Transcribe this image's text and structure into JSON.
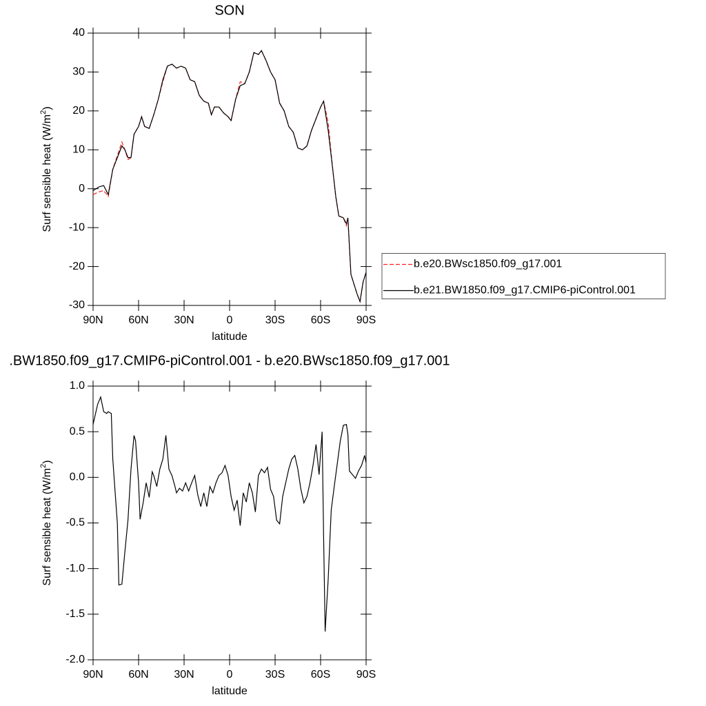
{
  "chart_data": [
    {
      "type": "line",
      "title": "SON",
      "x_label": "latitude",
      "y_label": [
        "Surf sensible heat (W/m",
        "2",
        ")"
      ],
      "xlim": [
        90,
        -90
      ],
      "xticks": [
        {
          "value": 90,
          "label": "90N"
        },
        {
          "value": 60,
          "label": "60N"
        },
        {
          "value": 30,
          "label": "30N"
        },
        0,
        {
          "value": -30,
          "label": "30S"
        },
        {
          "value": -60,
          "label": "60S"
        },
        {
          "value": -90,
          "label": "90S"
        }
      ],
      "ylim": [
        -30,
        40
      ],
      "yticks": [
        -30,
        -20,
        -10,
        0,
        10,
        20,
        30,
        40
      ],
      "legend": "right",
      "x": [
        90,
        86,
        83,
        80,
        77,
        74,
        71,
        69,
        67,
        65,
        63,
        60,
        58,
        56,
        53,
        50,
        47,
        44,
        41,
        38,
        35,
        32,
        29,
        26,
        23,
        20,
        17,
        14,
        12,
        10,
        7,
        4,
        1,
        -1,
        -4,
        -7,
        -10,
        -13,
        -16,
        -19,
        -21,
        -24,
        -27,
        -30,
        -33,
        -36,
        -39,
        -42,
        -45,
        -48,
        -51,
        -54,
        -57,
        -60,
        -62,
        -65,
        -68,
        -70,
        -72,
        -75,
        -77,
        -78,
        -80,
        -84,
        -86,
        -88,
        -90
      ],
      "series": [
        {
          "name": "b.e20.BWsc1850.f09_g17.001",
          "color": "#ff2020",
          "dash": true,
          "values": [
            -1.5,
            -0.8,
            -0.5,
            -2,
            5,
            8.5,
            12,
            10,
            7.5,
            8,
            14,
            16,
            18.5,
            16,
            15.5,
            19,
            23,
            27.5,
            31.5,
            32,
            31,
            31.5,
            31,
            28,
            27.5,
            24,
            22.5,
            22,
            19,
            21,
            21,
            19.5,
            18.5,
            17.5,
            23,
            27.5,
            27,
            30,
            35,
            34.5,
            35.5,
            33,
            30,
            28,
            22,
            20,
            16,
            14.5,
            10.5,
            10,
            11,
            15,
            18,
            21,
            22.5,
            17,
            5,
            -2,
            -7,
            -7.5,
            -9.5,
            -7.5,
            -22,
            -27,
            -29,
            -24,
            -21.5
          ]
        },
        {
          "name": "b.e21.BW1850.f09_g17.CMIP6-piControl.001",
          "color": "#000000",
          "dash": false,
          "values": [
            -0.5,
            0.5,
            0.8,
            -1.5,
            5,
            8,
            11,
            10,
            8,
            8,
            14,
            16,
            18.5,
            16,
            15.5,
            19,
            23,
            28,
            31.5,
            32,
            31,
            31.5,
            31,
            28,
            27.5,
            24,
            22.5,
            22,
            19,
            21,
            21,
            19.5,
            18.5,
            17.5,
            23,
            26.5,
            27,
            30,
            35,
            34.5,
            35.5,
            33,
            30,
            28,
            22,
            20,
            16,
            14.5,
            10.5,
            10,
            11,
            15,
            18,
            21,
            22.5,
            15,
            5,
            -2,
            -7,
            -7.5,
            -9,
            -7.5,
            -22,
            -27,
            -29,
            -24,
            -21.5
          ]
        }
      ]
    },
    {
      "type": "line",
      "title": ".BW1850.f09_g17.CMIP6-piControl.001 - b.e20.BWsc1850.f09_g17.001",
      "x_label": "latitude",
      "y_label": [
        "Surf sensible heat (W/m",
        "2",
        ")"
      ],
      "xlim": [
        90,
        -90
      ],
      "xticks": [
        {
          "value": 90,
          "label": "90N"
        },
        {
          "value": 60,
          "label": "60N"
        },
        {
          "value": 30,
          "label": "30N"
        },
        0,
        {
          "value": -30,
          "label": "30S"
        },
        {
          "value": -60,
          "label": "60S"
        },
        {
          "value": -90,
          "label": "90S"
        }
      ],
      "ylim": [
        -2,
        1
      ],
      "yticks": [
        {
          "value": -2,
          "label": "-2.0"
        },
        -1.5,
        {
          "value": -1,
          "label": "-1.0"
        },
        -0.5,
        {
          "value": 0,
          "label": "0.0"
        },
        0.5,
        {
          "value": 1,
          "label": "1.0"
        }
      ],
      "color": "#000000",
      "x": [
        90,
        87,
        85,
        83,
        81,
        80,
        78,
        77,
        75,
        74,
        73,
        71,
        69,
        67,
        65,
        63,
        62,
        60,
        59,
        57,
        55,
        53,
        51,
        50,
        48,
        46,
        44,
        42,
        40,
        38,
        36,
        35,
        33,
        31,
        29,
        27,
        25,
        23,
        21,
        19,
        17,
        15,
        13,
        11,
        9,
        7,
        5,
        3,
        1,
        -1,
        -3,
        -5,
        -7,
        -9,
        -11,
        -13,
        -15,
        -17,
        -19,
        -21,
        -23,
        -25,
        -27,
        -29,
        -31,
        -33,
        -35,
        -37,
        -39,
        -41,
        -43,
        -45,
        -47,
        -49,
        -51,
        -53,
        -55,
        -57,
        -59,
        -61,
        -62,
        -63,
        -65,
        -67,
        -69,
        -71,
        -73,
        -75,
        -77,
        -78,
        -79,
        -81,
        -83,
        -85,
        -87,
        -89,
        -90
      ],
      "values": [
        0.58,
        0.8,
        0.88,
        0.72,
        0.7,
        0.72,
        0.7,
        0.2,
        -0.27,
        -0.5,
        -1.18,
        -1.17,
        -0.81,
        -0.47,
        0.09,
        0.46,
        0.4,
        -0.06,
        -0.46,
        -0.28,
        -0.06,
        -0.22,
        0.06,
        0.02,
        -0.1,
        0.09,
        0.2,
        0.46,
        0.09,
        0.02,
        -0.1,
        -0.17,
        -0.12,
        -0.15,
        -0.06,
        -0.15,
        -0.06,
        0.02,
        -0.19,
        -0.32,
        -0.17,
        -0.32,
        -0.1,
        -0.17,
        -0.06,
        0.02,
        0.05,
        0.13,
        0.02,
        -0.21,
        -0.36,
        -0.25,
        -0.53,
        -0.17,
        -0.27,
        -0.06,
        -0.17,
        -0.38,
        0.02,
        0.09,
        0.05,
        0.11,
        -0.13,
        -0.21,
        -0.47,
        -0.51,
        -0.21,
        -0.06,
        0.09,
        0.2,
        0.24,
        0.09,
        -0.13,
        -0.28,
        -0.21,
        -0.06,
        0.13,
        0.36,
        0.03,
        0.5,
        -0.66,
        -1.69,
        -1.12,
        -0.36,
        -0.1,
        0.15,
        0.4,
        0.57,
        0.58,
        0.47,
        0.07,
        0.03,
        -0.01,
        0.07,
        0.13,
        0.24,
        0.16
      ]
    }
  ]
}
